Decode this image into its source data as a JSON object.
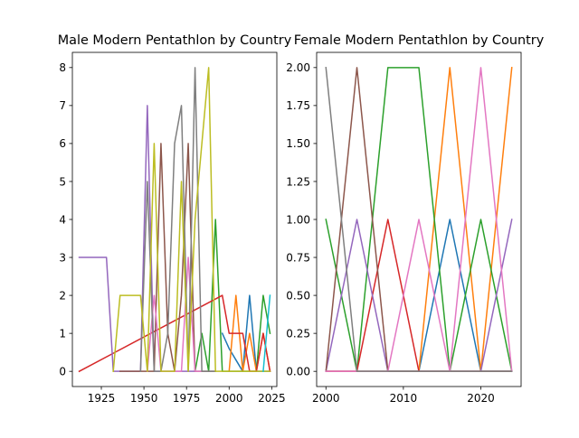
{
  "palette": [
    "#1f77b4",
    "#ff7f0e",
    "#2ca02c",
    "#d62728",
    "#9467bd",
    "#8c564b",
    "#e377c2",
    "#7f7f7f",
    "#bcbd22",
    "#17becf"
  ],
  "chart_data": [
    {
      "type": "line",
      "title": "Male Modern Pentathlon by Country",
      "xlabel": "",
      "ylabel": "",
      "xlim": [
        1908,
        2028
      ],
      "ylim": [
        -0.4,
        8.4
      ],
      "xticks": [
        1925,
        1950,
        1975,
        2000,
        2025
      ],
      "yticks": [
        0,
        1,
        2,
        3,
        4,
        5,
        6,
        7,
        8
      ],
      "legend": "none",
      "grid": false,
      "series": [
        {
          "color": "#1f77b4",
          "points": [
            [
              1996,
              1
            ],
            [
              2000,
              0.6
            ],
            [
              2004,
              0.3
            ],
            [
              2008,
              0
            ],
            [
              2012,
              2
            ],
            [
              2016,
              0
            ],
            [
              2020,
              0
            ],
            [
              2024,
              0
            ]
          ]
        },
        {
          "color": "#ff7f0e",
          "points": [
            [
              2000,
              0
            ],
            [
              2004,
              2
            ],
            [
              2008,
              0
            ],
            [
              2012,
              1
            ],
            [
              2016,
              0
            ],
            [
              2020,
              1
            ],
            [
              2024,
              0
            ]
          ]
        },
        {
          "color": "#2ca02c",
          "points": [
            [
              1980,
              0
            ],
            [
              1984,
              1
            ],
            [
              1988,
              0
            ],
            [
              1992,
              4
            ],
            [
              1996,
              0
            ],
            [
              2000,
              0
            ],
            [
              2004,
              0
            ],
            [
              2008,
              0
            ],
            [
              2012,
              0
            ],
            [
              2016,
              0
            ],
            [
              2020,
              2
            ],
            [
              2024,
              1
            ]
          ]
        },
        {
          "color": "#d62728",
          "points": [
            [
              1912,
              0
            ],
            [
              1996,
              2
            ],
            [
              2000,
              1
            ],
            [
              2004,
              1
            ],
            [
              2008,
              1
            ],
            [
              2012,
              0
            ],
            [
              2016,
              0
            ],
            [
              2020,
              1
            ],
            [
              2024,
              0
            ]
          ]
        },
        {
          "color": "#9467bd",
          "points": [
            [
              1912,
              3
            ],
            [
              1920,
              3
            ],
            [
              1924,
              3
            ],
            [
              1928,
              3
            ],
            [
              1932,
              0
            ],
            [
              1936,
              0
            ],
            [
              1948,
              0
            ],
            [
              1952,
              7
            ],
            [
              1956,
              0
            ],
            [
              1960,
              0
            ],
            [
              1964,
              0
            ],
            [
              1968,
              0
            ],
            [
              1972,
              0
            ],
            [
              1976,
              0
            ],
            [
              1980,
              0
            ]
          ]
        },
        {
          "color": "#8c564b",
          "points": [
            [
              1936,
              0
            ],
            [
              1948,
              0
            ],
            [
              1952,
              0
            ],
            [
              1956,
              0
            ],
            [
              1960,
              6
            ],
            [
              1964,
              1
            ],
            [
              1968,
              0
            ],
            [
              1972,
              2
            ],
            [
              1976,
              6
            ],
            [
              1980,
              0
            ],
            [
              1984,
              0
            ],
            [
              1988,
              0
            ],
            [
              1992,
              0
            ]
          ]
        },
        {
          "color": "#e377c2",
          "points": [
            [
              1952,
              0
            ],
            [
              1956,
              2
            ],
            [
              1960,
              0
            ],
            [
              1964,
              0
            ],
            [
              1968,
              0
            ],
            [
              1972,
              0
            ],
            [
              1976,
              3
            ],
            [
              1980,
              0
            ],
            [
              1984,
              0
            ]
          ]
        },
        {
          "color": "#7f7f7f",
          "points": [
            [
              1948,
              0
            ],
            [
              1952,
              5
            ],
            [
              1956,
              0
            ],
            [
              1960,
              0
            ],
            [
              1964,
              1
            ],
            [
              1968,
              6
            ],
            [
              1972,
              7
            ],
            [
              1976,
              0
            ],
            [
              1980,
              8
            ],
            [
              1984,
              0
            ],
            [
              1988,
              0
            ],
            [
              1992,
              0
            ]
          ]
        },
        {
          "color": "#bcbd22",
          "points": [
            [
              1932,
              0
            ],
            [
              1936,
              2
            ],
            [
              1948,
              2
            ],
            [
              1952,
              0
            ],
            [
              1956,
              6
            ],
            [
              1960,
              0
            ],
            [
              1964,
              0
            ],
            [
              1968,
              0
            ],
            [
              1972,
              5
            ],
            [
              1976,
              0
            ],
            [
              1980,
              4
            ],
            [
              1984,
              6
            ],
            [
              1988,
              8
            ],
            [
              1992,
              0
            ],
            [
              1996,
              0
            ],
            [
              2000,
              0
            ],
            [
              2004,
              0
            ],
            [
              2008,
              0
            ],
            [
              2012,
              0
            ],
            [
              2016,
              0
            ],
            [
              2020,
              0
            ],
            [
              2024,
              0
            ]
          ]
        },
        {
          "color": "#17becf",
          "points": [
            [
              2020,
              0
            ],
            [
              2024,
              2
            ]
          ]
        }
      ]
    },
    {
      "type": "line",
      "title": "Female Modern Pentathlon by Country",
      "xlabel": "",
      "ylabel": "",
      "xlim": [
        1998.8,
        2025.2
      ],
      "ylim": [
        -0.1,
        2.1
      ],
      "xticks": [
        2000,
        2010,
        2020
      ],
      "yticks": [
        0.0,
        0.25,
        0.5,
        0.75,
        1.0,
        1.25,
        1.5,
        1.75,
        2.0
      ],
      "ytick_labels": [
        "0.00",
        "0.25",
        "0.50",
        "0.75",
        "1.00",
        "1.25",
        "1.50",
        "1.75",
        "2.00"
      ],
      "legend": "none",
      "grid": false,
      "series": [
        {
          "color": "#1f77b4",
          "points": [
            [
              2000,
              0
            ],
            [
              2004,
              0
            ],
            [
              2008,
              0
            ],
            [
              2012,
              0
            ],
            [
              2016,
              1
            ],
            [
              2020,
              0
            ],
            [
              2024,
              0
            ]
          ]
        },
        {
          "color": "#ff7f0e",
          "points": [
            [
              2000,
              0
            ],
            [
              2004,
              0
            ],
            [
              2008,
              0
            ],
            [
              2012,
              0
            ],
            [
              2016,
              2
            ],
            [
              2020,
              0
            ],
            [
              2024,
              2
            ]
          ]
        },
        {
          "color": "#2ca02c",
          "points": [
            [
              2000,
              1
            ],
            [
              2004,
              0
            ],
            [
              2008,
              2
            ],
            [
              2012,
              2
            ],
            [
              2016,
              0
            ],
            [
              2020,
              1
            ],
            [
              2024,
              0
            ]
          ]
        },
        {
          "color": "#d62728",
          "points": [
            [
              2000,
              0
            ],
            [
              2004,
              0
            ],
            [
              2008,
              1
            ],
            [
              2012,
              0
            ],
            [
              2016,
              0
            ],
            [
              2020,
              0
            ],
            [
              2024,
              0
            ]
          ]
        },
        {
          "color": "#9467bd",
          "points": [
            [
              2000,
              0
            ],
            [
              2004,
              1
            ],
            [
              2008,
              0
            ],
            [
              2012,
              0
            ],
            [
              2016,
              0
            ],
            [
              2020,
              0
            ],
            [
              2024,
              1
            ]
          ]
        },
        {
          "color": "#8c564b",
          "points": [
            [
              2000,
              0
            ],
            [
              2004,
              2
            ],
            [
              2008,
              0
            ],
            [
              2012,
              0
            ],
            [
              2016,
              0
            ],
            [
              2020,
              0
            ],
            [
              2024,
              0
            ]
          ]
        },
        {
          "color": "#e377c2",
          "points": [
            [
              2000,
              0
            ],
            [
              2004,
              0
            ],
            [
              2008,
              0
            ],
            [
              2012,
              1
            ],
            [
              2016,
              0
            ],
            [
              2020,
              2
            ],
            [
              2024,
              0
            ]
          ]
        },
        {
          "color": "#7f7f7f",
          "points": [
            [
              2000,
              2
            ],
            [
              2004,
              0
            ],
            [
              2008,
              0
            ],
            [
              2012,
              0
            ],
            [
              2016,
              0
            ],
            [
              2020,
              0
            ],
            [
              2024,
              0
            ]
          ]
        }
      ]
    }
  ]
}
